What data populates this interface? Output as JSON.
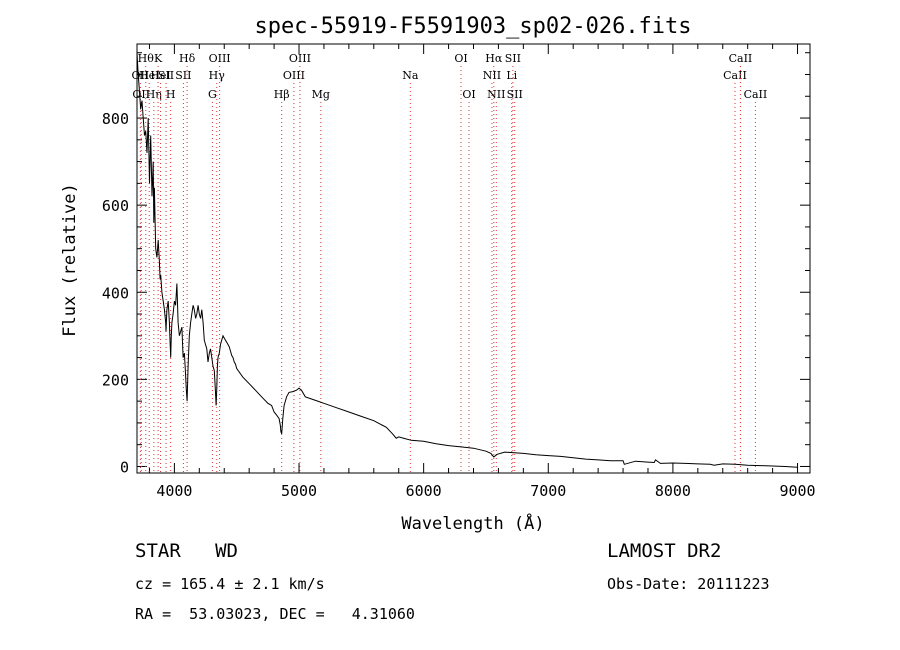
{
  "chart_data": {
    "type": "line",
    "title": "spec-55919-F5591903_sp02-026.fits",
    "xlabel": "Wavelength (Å)",
    "ylabel": "Flux (relative)",
    "xlim": [
      3700,
      9100
    ],
    "ylim": [
      -15,
      970
    ],
    "x_ticks": [
      4000,
      5000,
      6000,
      7000,
      8000,
      9000
    ],
    "y_ticks": [
      0,
      200,
      400,
      600,
      800
    ],
    "grid": false,
    "series": [
      {
        "x": [
          3700,
          3710,
          3720,
          3730,
          3740,
          3750,
          3760,
          3770,
          3780,
          3790,
          3800,
          3810,
          3820,
          3830,
          3835,
          3840,
          3850,
          3860,
          3870,
          3880,
          3885,
          3890,
          3900,
          3910,
          3920,
          3930,
          3933,
          3940,
          3950,
          3960,
          3965,
          3970,
          3975,
          3980,
          3990,
          4000,
          4010,
          4020,
          4030,
          4040,
          4050,
          4060,
          4070,
          4080,
          4090,
          4095,
          4102,
          4110,
          4120,
          4130,
          4140,
          4150,
          4160,
          4170,
          4180,
          4190,
          4200,
          4210,
          4220,
          4230,
          4240,
          4250,
          4260,
          4270,
          4280,
          4290,
          4300,
          4310,
          4320,
          4330,
          4335,
          4340,
          4345,
          4350,
          4360,
          4370,
          4380,
          4390,
          4400,
          4410,
          4420,
          4430,
          4440,
          4450,
          4460,
          4470,
          4480,
          4490,
          4500,
          4550,
          4600,
          4650,
          4700,
          4750,
          4780,
          4800,
          4820,
          4840,
          4850,
          4855,
          4861,
          4870,
          4880,
          4900,
          4920,
          4950,
          4980,
          5000,
          5020,
          5050,
          5100,
          5150,
          5200,
          5300,
          5400,
          5500,
          5600,
          5700,
          5750,
          5780,
          5800,
          5850,
          5900,
          6000,
          6100,
          6200,
          6300,
          6400,
          6500,
          6540,
          6563,
          6590,
          6650,
          6700,
          6800,
          6900,
          7000,
          7100,
          7200,
          7300,
          7400,
          7500,
          7600,
          7610,
          7700,
          7800,
          7850,
          7860,
          7900,
          8000,
          8100,
          8200,
          8300,
          8330,
          8400,
          8500,
          8550,
          8600,
          8700,
          8800,
          8900,
          9000
        ],
        "y": [
          950,
          900,
          860,
          820,
          840,
          800,
          760,
          770,
          720,
          800,
          650,
          760,
          620,
          700,
          560,
          640,
          500,
          480,
          520,
          470,
          430,
          440,
          400,
          380,
          360,
          330,
          310,
          360,
          380,
          330,
          290,
          250,
          300,
          330,
          350,
          380,
          370,
          420,
          330,
          300,
          310,
          320,
          250,
          260,
          210,
          180,
          150,
          230,
          300,
          330,
          350,
          370,
          360,
          340,
          350,
          370,
          350,
          340,
          360,
          330,
          290,
          280,
          270,
          240,
          260,
          270,
          250,
          230,
          220,
          170,
          140,
          180,
          230,
          250,
          260,
          280,
          290,
          300,
          295,
          290,
          285,
          280,
          275,
          265,
          255,
          250,
          240,
          235,
          225,
          205,
          190,
          175,
          160,
          145,
          140,
          125,
          118,
          110,
          95,
          80,
          75,
          110,
          140,
          160,
          170,
          172,
          175,
          180,
          175,
          160,
          155,
          150,
          145,
          135,
          125,
          115,
          105,
          90,
          75,
          65,
          68,
          64,
          60,
          58,
          52,
          48,
          45,
          42,
          35,
          30,
          22,
          28,
          33,
          32,
          30,
          27,
          25,
          23,
          20,
          17,
          15,
          13,
          13,
          5,
          12,
          10,
          9,
          15,
          7,
          8,
          7,
          6,
          5,
          3,
          6,
          5,
          4,
          3,
          2,
          1,
          0,
          -2
        ]
      }
    ],
    "line_labels": [
      {
        "x": 3727,
        "label": "OII",
        "row": 2
      },
      {
        "x": 3734,
        "label": "OII",
        "row": 3
      },
      {
        "x": 3770,
        "label": "Hθ",
        "row": 1
      },
      {
        "x": 3798,
        "label": "HeI",
        "row": 2
      },
      {
        "x": 3835,
        "label": "Hη",
        "row": 3
      },
      {
        "x": 3869,
        "label": "K",
        "row": 1
      },
      {
        "x": 3889,
        "label": "HeI",
        "row": 2
      },
      {
        "x": 3933,
        "label": "SII",
        "row": 2
      },
      {
        "x": 3970,
        "label": "H",
        "row": 3
      },
      {
        "x": 4102,
        "label": "Hδ",
        "row": 1
      },
      {
        "x": 4072,
        "label": "SII",
        "row": 2
      },
      {
        "x": 4340,
        "label": "Hγ",
        "row": 2
      },
      {
        "x": 4363,
        "label": "OIII",
        "row": 1
      },
      {
        "x": 4305,
        "label": "G",
        "row": 3
      },
      {
        "x": 4861,
        "label": "Hβ",
        "row": 3
      },
      {
        "x": 4959,
        "label": "OIII",
        "row": 2
      },
      {
        "x": 5007,
        "label": "OIII",
        "row": 1
      },
      {
        "x": 5175,
        "label": "Mg",
        "row": 3
      },
      {
        "x": 5893,
        "label": "Na",
        "row": 2
      },
      {
        "x": 6300,
        "label": "OI",
        "row": 1
      },
      {
        "x": 6364,
        "label": "OI",
        "row": 3
      },
      {
        "x": 6548,
        "label": "NII",
        "row": 2
      },
      {
        "x": 6563,
        "label": "Hα",
        "row": 1
      },
      {
        "x": 6583,
        "label": "NII",
        "row": 3
      },
      {
        "x": 6707,
        "label": "Li",
        "row": 2
      },
      {
        "x": 6716,
        "label": "SII",
        "row": 1
      },
      {
        "x": 6731,
        "label": "SII",
        "row": 3
      },
      {
        "x": 8498,
        "label": "CaII",
        "row": 2
      },
      {
        "x": 8542,
        "label": "CaII",
        "row": 1
      },
      {
        "x": 8662,
        "label": "CaII",
        "row": 3
      }
    ]
  },
  "info": {
    "object_class": "STAR   WD",
    "survey": "LAMOST DR2",
    "cz": "cz = 165.4 ± 2.1 km/s",
    "obs_date": "Obs-Date: 20111223",
    "coords": "RA =  53.03023, DEC =   4.31060"
  }
}
